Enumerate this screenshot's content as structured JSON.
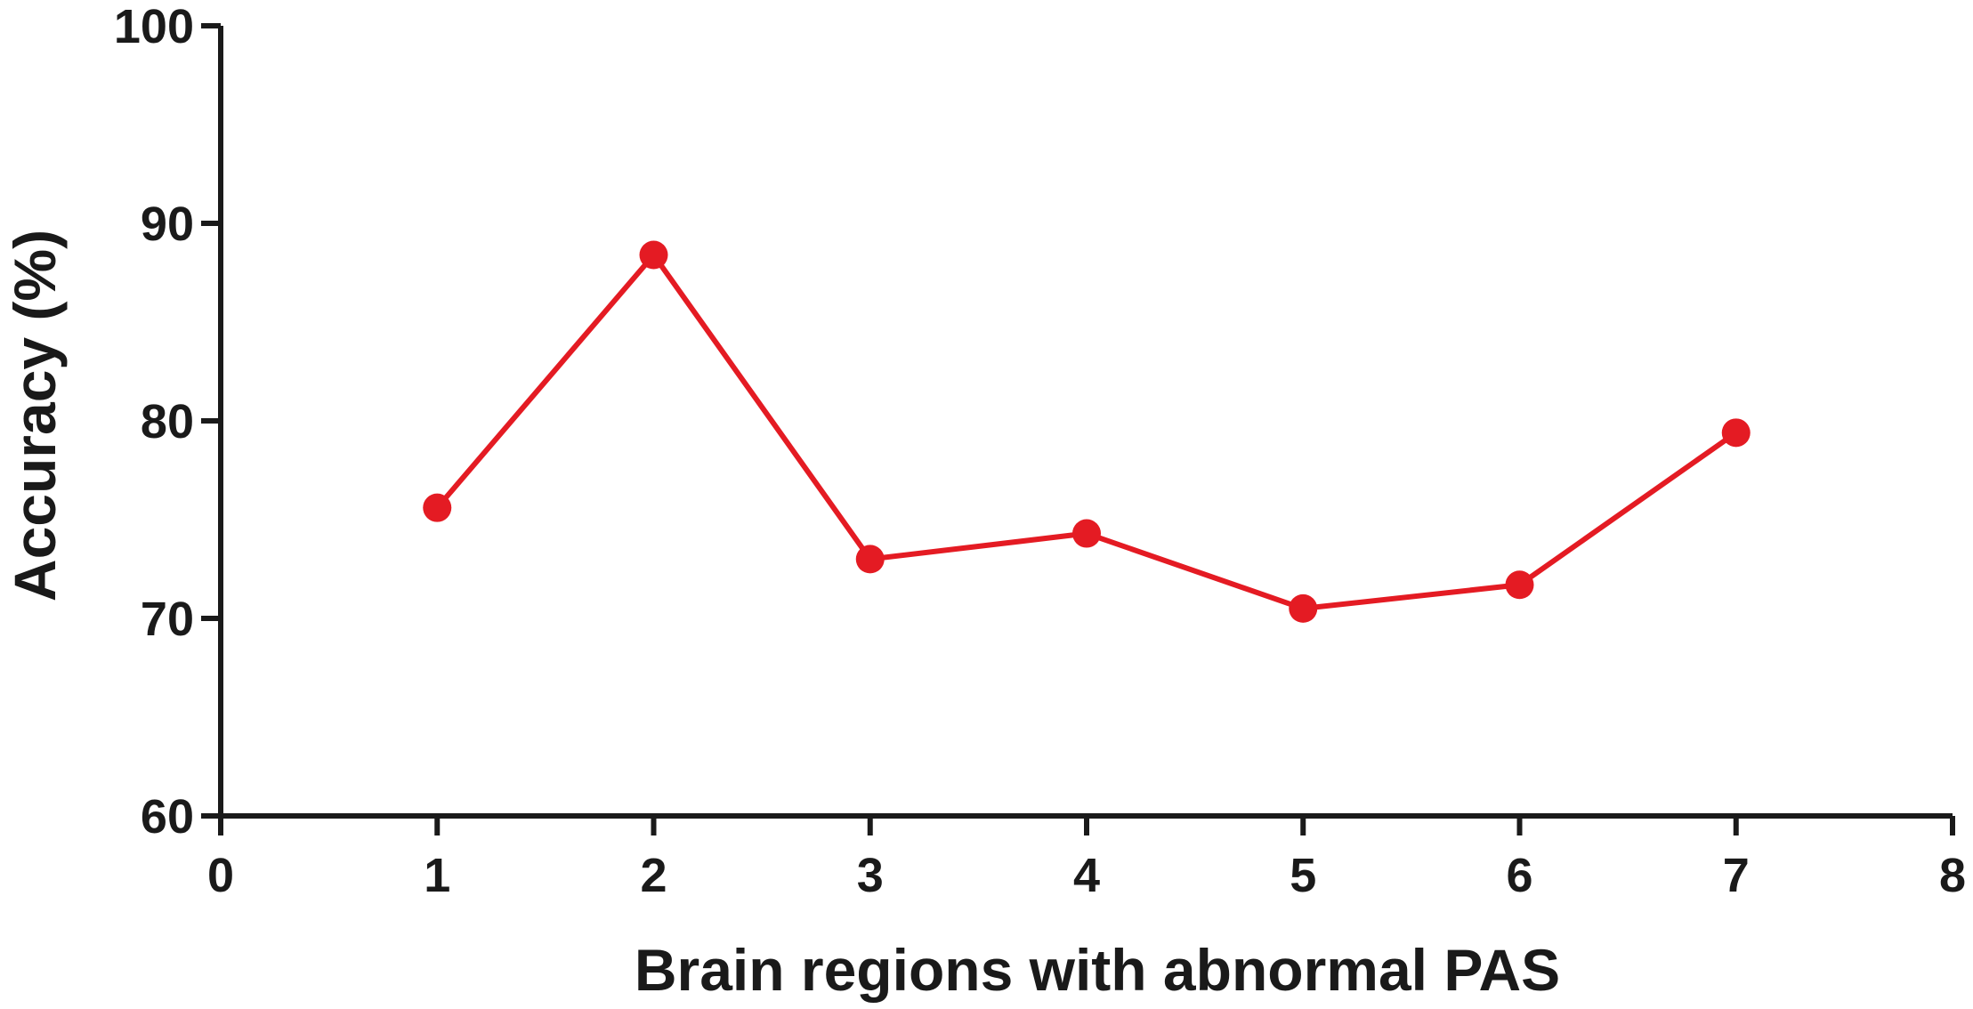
{
  "chart_data": {
    "type": "line",
    "title": "",
    "xlabel": "Brain regions with abnormal PAS",
    "ylabel": "Accuracy (%)",
    "xlim": [
      0,
      8
    ],
    "ylim": [
      60,
      100
    ],
    "x_ticks": [
      0,
      1,
      2,
      3,
      4,
      5,
      6,
      7,
      8
    ],
    "y_ticks": [
      60,
      70,
      80,
      90,
      100
    ],
    "x_tick_labels": [
      "0",
      "1",
      "2",
      "3",
      "4",
      "5",
      "6",
      "7",
      "8"
    ],
    "y_tick_labels": [
      "60",
      "70",
      "80",
      "90",
      "100"
    ],
    "grid": false,
    "legend": "none",
    "series": [
      {
        "color": "#e41b23",
        "x": [
          1,
          2,
          3,
          4,
          5,
          6,
          7
        ],
        "y": [
          75.6,
          88.4,
          73.0,
          74.3,
          70.5,
          71.7,
          79.4
        ]
      }
    ]
  }
}
